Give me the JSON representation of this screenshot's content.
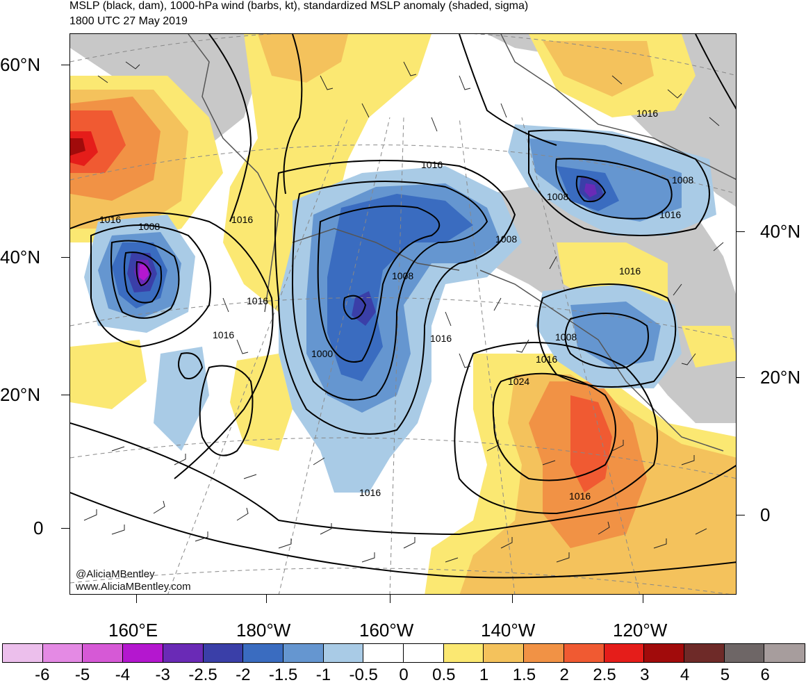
{
  "header": {
    "title": "MSLP (black, dam), 1000-hPa wind (barbs, kt), standardized MSLP anomaly (shaded, sigma)",
    "subtitle": "1800 UTC 27 May 2019"
  },
  "axes": {
    "lat_left": [
      "60°N",
      "40°N",
      "20°N",
      "0"
    ],
    "lat_right": [
      "40°N",
      "20°N",
      "0"
    ],
    "lon_bottom": [
      "160°E",
      "180°W",
      "160°W",
      "140°W",
      "120°W"
    ]
  },
  "watermark": {
    "line1": "@AliciaMBentley",
    "line2": "www.AliciaMBentley.com"
  },
  "isobar_labels": [
    "1016",
    "1008",
    "1016",
    "1016",
    "1016",
    "1016",
    "1008",
    "1000",
    "1008",
    "1016",
    "1016",
    "1016",
    "1024",
    "1008",
    "1016",
    "1008",
    "1016",
    "1016",
    "1016",
    "1008"
  ],
  "colors": {
    "land_gray": "#c8c8c8",
    "isobar": "#000000",
    "border": "#555555"
  },
  "colorbar": {
    "labels": [
      "-6",
      "-5",
      "-4",
      "-3",
      "-2.5",
      "-2",
      "-1.5",
      "-1",
      "-0.5",
      "0",
      "0.5",
      "1",
      "1.5",
      "2",
      "2.5",
      "3",
      "4",
      "5",
      "6"
    ],
    "colors": [
      "#ecbfec",
      "#e48ae4",
      "#d659d6",
      "#b417cf",
      "#6a2ab6",
      "#3a3fa8",
      "#3a6cc0",
      "#6596d0",
      "#a9cbe6",
      "#ffffff",
      "#ffffff",
      "#fbe872",
      "#f4c25c",
      "#f19245",
      "#f05a32",
      "#e51d1a",
      "#a10b0b",
      "#6e2a28",
      "#6e6666",
      "#a79d9d"
    ]
  }
}
